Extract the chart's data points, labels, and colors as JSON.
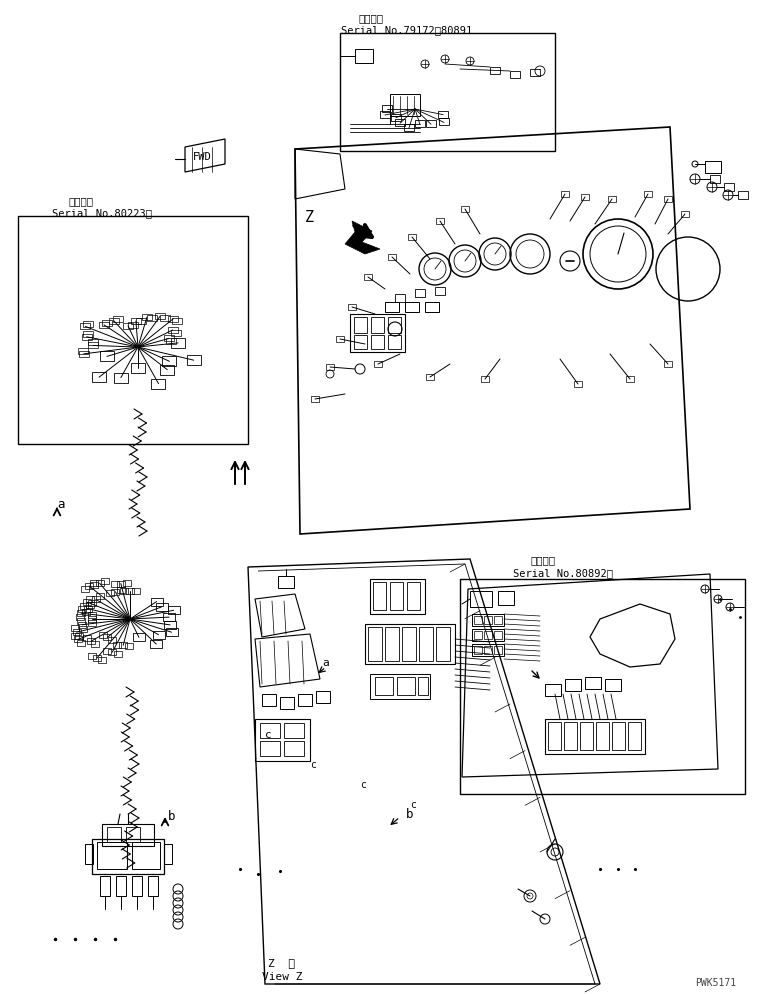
{
  "background_color": "#ffffff",
  "line_color": "#000000",
  "fig_width": 7.62,
  "fig_height": 9.95,
  "watermark": "PWK5171",
  "serial_top_label1": "適用号機",
  "serial_top_label2": "Serial No.79172～80891",
  "serial_left_label1": "適用号機",
  "serial_left_label2": "Serial No.80223～",
  "serial_right_label1": "適用号機",
  "serial_right_label2": "Serial No.80892～",
  "view_z_label1": "Z  視",
  "view_z_label2": "View Z",
  "label_a": "a",
  "label_b": "b",
  "label_a2": "a",
  "label_b2": "b",
  "label_c": "c"
}
